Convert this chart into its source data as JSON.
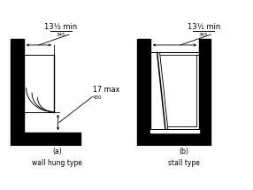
{
  "bg": "#ffffff",
  "lc": "#000000",
  "title_a": "(a)\nwall hung type",
  "title_b": "(b)\nstall type",
  "lbl_13": "13½ min",
  "lbl_345": "345",
  "lbl_17": "17 max",
  "lbl_430": "430"
}
